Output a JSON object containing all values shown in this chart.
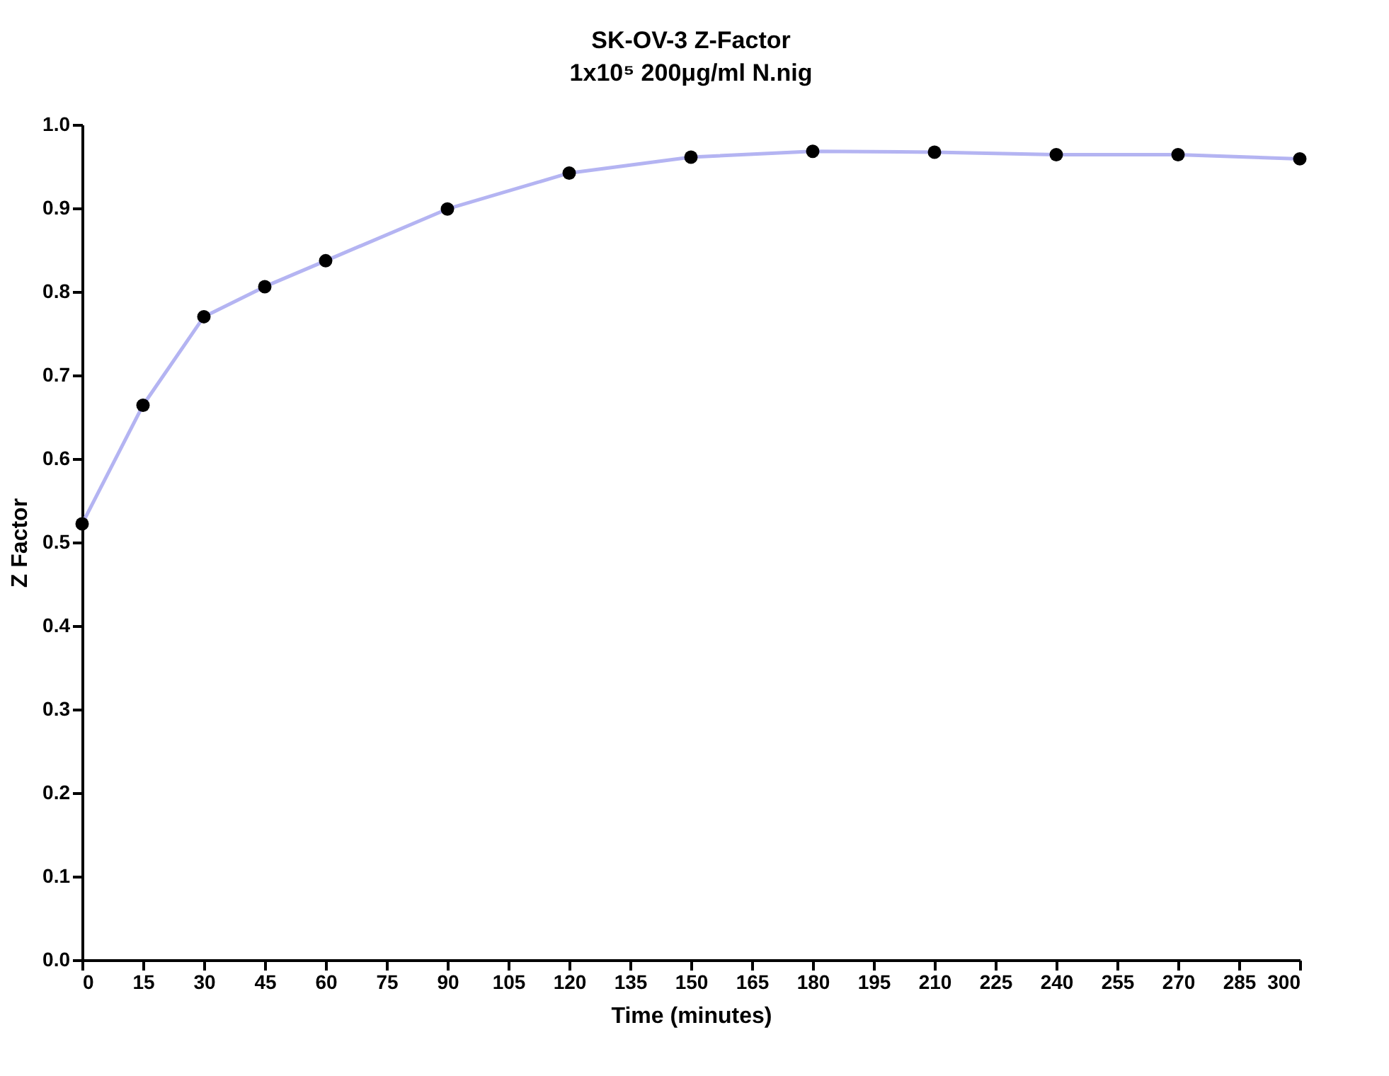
{
  "chart_data": {
    "type": "line",
    "title": "SK-OV-3 Z-Factor",
    "subtitle": "1x10⁵ 200μg/ml N.nig",
    "xlabel": "Time (minutes)",
    "ylabel": "Z Factor",
    "x": [
      0,
      15,
      30,
      45,
      60,
      90,
      120,
      150,
      180,
      210,
      240,
      270,
      300
    ],
    "series": [
      {
        "color": "#b4b4f2",
        "colors": [
          "#000000",
          "#000000",
          "#000000",
          "#000000",
          "#000000",
          "#000000",
          "#000000",
          "#000000",
          "#000000",
          "#000000",
          "#000000",
          "#000000",
          "#000000"
        ],
        "values": [
          0.522,
          0.664,
          0.77,
          0.806,
          0.837,
          0.899,
          0.942,
          0.961,
          0.968,
          0.967,
          0.964,
          0.964,
          0.959
        ]
      }
    ],
    "xlim": [
      0,
      300
    ],
    "xticks": [
      0,
      15,
      30,
      45,
      60,
      75,
      90,
      105,
      120,
      135,
      150,
      165,
      180,
      195,
      210,
      225,
      240,
      255,
      270,
      285,
      300
    ],
    "ylim": [
      0,
      1
    ],
    "yticks": [
      {
        "value": 0,
        "label": "0.0"
      },
      0.1,
      0.2,
      0.3,
      0.4,
      0.5,
      0.6,
      0.7,
      0.8,
      0.9,
      {
        "value": 1,
        "label": "1.0"
      }
    ],
    "grid": false,
    "marker": "circle",
    "line_style": "solid"
  }
}
